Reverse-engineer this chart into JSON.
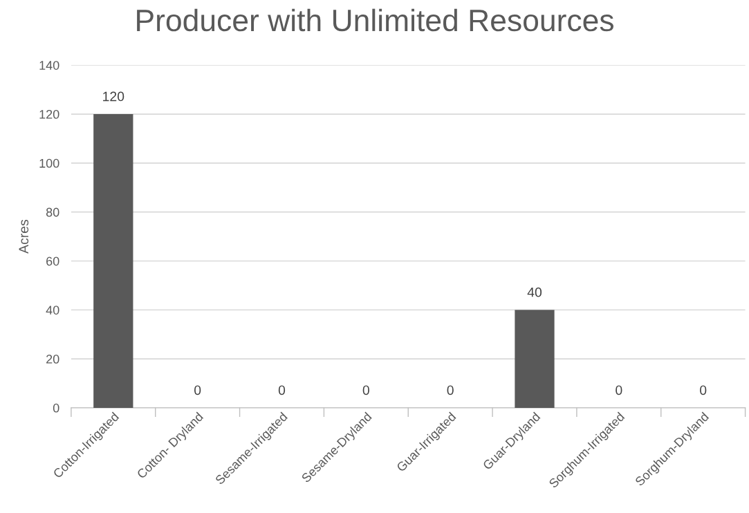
{
  "chart_data": {
    "type": "bar",
    "title": "Producer with Unlimited Resources",
    "ylabel": "Acres",
    "categories": [
      "Cotton-Irrigated",
      "Cotton- Dryland",
      "Sesame-Irrigated",
      "Sesame-Dryland",
      "Guar-Irrigated",
      "Guar-Dryland",
      "Sorghum-Irrigated",
      "Sorghum-Dryland"
    ],
    "values": [
      120,
      0,
      0,
      0,
      0,
      40,
      0,
      0
    ],
    "color": "#595959",
    "ylim": [
      0,
      140
    ],
    "yticks": [
      0,
      20,
      40,
      60,
      80,
      100,
      120,
      140
    ],
    "grid": "y",
    "data_labels": true
  }
}
